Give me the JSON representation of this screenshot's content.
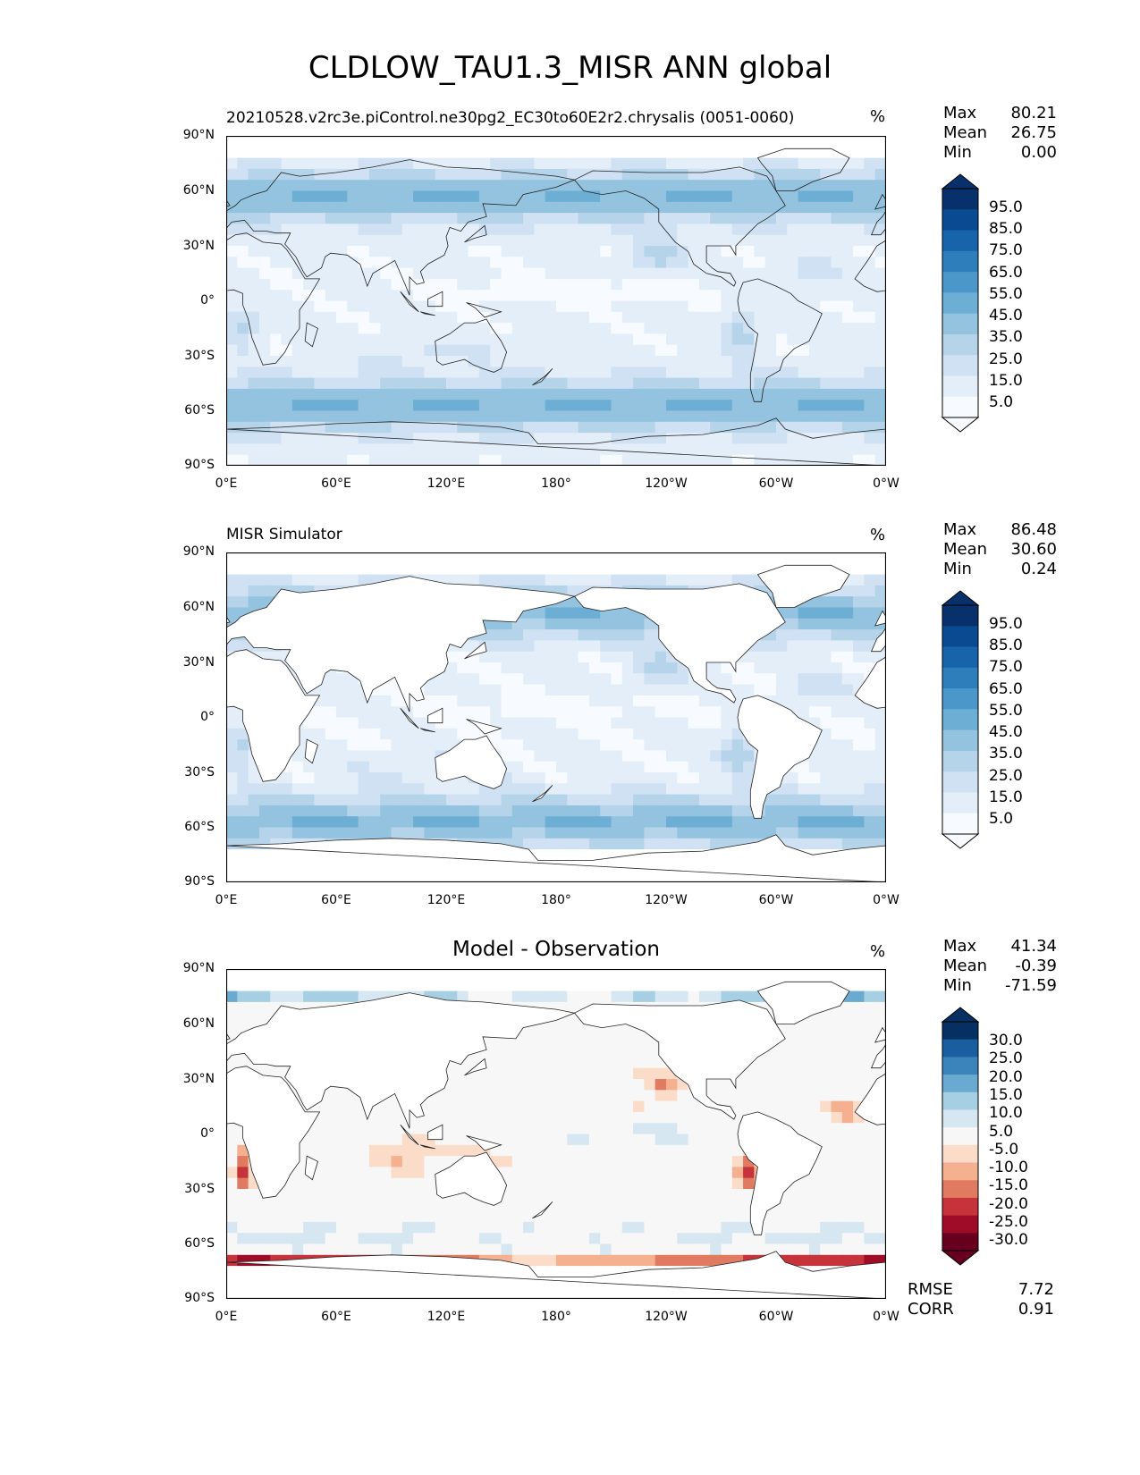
{
  "title": "CLDLOW_TAU1.3_MISR ANN global",
  "axes": {
    "yticks": [
      "90°N",
      "60°N",
      "30°N",
      "0°",
      "30°S",
      "60°S",
      "90°S"
    ],
    "xticks": [
      "0°E",
      "60°E",
      "120°E",
      "180°",
      "120°W",
      "60°W",
      "0°W"
    ]
  },
  "panels": [
    {
      "subtitle": "20210528.v2rc3e.piControl.ne30pg2_EC30to60E2r2.chrysalis (0051-0060)",
      "units": "%",
      "stats": {
        "max_label": "Max",
        "max": "80.21",
        "mean_label": "Mean",
        "mean": "26.75",
        "min_label": "Min",
        "min": "0.00"
      },
      "colorbar_labels": [
        "95.0",
        "85.0",
        "75.0",
        "65.0",
        "55.0",
        "45.0",
        "35.0",
        "25.0",
        "15.0",
        "5.0"
      ]
    },
    {
      "subtitle": "MISR Simulator",
      "units": "%",
      "stats": {
        "max_label": "Max",
        "max": "86.48",
        "mean_label": "Mean",
        "mean": "30.60",
        "min_label": "Min",
        "min": "0.24"
      },
      "colorbar_labels": [
        "95.0",
        "85.0",
        "75.0",
        "65.0",
        "55.0",
        "45.0",
        "35.0",
        "25.0",
        "15.0",
        "5.0"
      ]
    },
    {
      "subtitle": "Model - Observation",
      "units": "%",
      "stats": {
        "max_label": "Max",
        "max": "41.34",
        "mean_label": "Mean",
        "mean": "-0.39",
        "min_label": "Min",
        "min": "-71.59"
      },
      "colorbar_labels": [
        "30.0",
        "25.0",
        "20.0",
        "15.0",
        "10.0",
        "5.0",
        "-5.0",
        "-10.0",
        "-15.0",
        "-20.0",
        "-25.0",
        "-30.0"
      ],
      "rmse_label": "RMSE",
      "rmse": "7.72",
      "corr_label": "CORR",
      "corr": "0.91"
    }
  ],
  "chart_data": [
    {
      "type": "heatmap",
      "variable": "CLDLOW_TAU1.3_MISR",
      "units": "%",
      "xlim": [
        0,
        360
      ],
      "ylim": [
        -90,
        90
      ],
      "levels": [
        0,
        5,
        10,
        15,
        20,
        25,
        30,
        35,
        40,
        45,
        50,
        55,
        60,
        65,
        70,
        75,
        80,
        85,
        90,
        95,
        100
      ],
      "colormap": [
        "#f7fbff",
        "#deebf7",
        "#c6dbef",
        "#9ecae1",
        "#6baed6",
        "#4292c6",
        "#2171b5",
        "#08519c",
        "#08306b"
      ],
      "max": 80.21,
      "mean": 26.75,
      "min": 0.0
    },
    {
      "type": "heatmap",
      "variable": "CLDLOW_TAU1.3_MISR",
      "units": "%",
      "xlim": [
        0,
        360
      ],
      "ylim": [
        -90,
        90
      ],
      "levels": [
        0,
        5,
        10,
        15,
        20,
        25,
        30,
        35,
        40,
        45,
        50,
        55,
        60,
        65,
        70,
        75,
        80,
        85,
        90,
        95,
        100
      ],
      "colormap": [
        "#f7fbff",
        "#deebf7",
        "#c6dbef",
        "#9ecae1",
        "#6baed6",
        "#4292c6",
        "#2171b5",
        "#08519c",
        "#08306b"
      ],
      "max": 86.48,
      "mean": 30.6,
      "min": 0.24
    },
    {
      "type": "heatmap",
      "units": "%",
      "xlim": [
        0,
        360
      ],
      "ylim": [
        -90,
        90
      ],
      "levels": [
        -35,
        -30,
        -25,
        -20,
        -15,
        -10,
        -5,
        5,
        10,
        15,
        20,
        25,
        30,
        35
      ],
      "colormap": [
        "#67001f",
        "#b2182b",
        "#d6604d",
        "#f4a582",
        "#fddbc7",
        "#f7f7f7",
        "#d1e5f0",
        "#92c5de",
        "#4393c3",
        "#2166ac",
        "#053061"
      ],
      "max": 41.34,
      "mean": -0.39,
      "min": -71.59,
      "rmse": 7.72,
      "corr": 0.91
    }
  ],
  "colors": {
    "blues": [
      "#f7fbff",
      "#e3eef9",
      "#cfe1f2",
      "#b5d4e9",
      "#93c3df",
      "#6daed5",
      "#4b97c9",
      "#2f7ebc",
      "#1864aa",
      "#0a4a90",
      "#08306b"
    ],
    "rdbu": [
      "#67001f",
      "#9f0c27",
      "#c6333b",
      "#e07b62",
      "#f4b08f",
      "#fbdcc8",
      "#f7f7f7",
      "#d6e7f1",
      "#a7cfe4",
      "#6aa9d0",
      "#3a84bb",
      "#1b5ea0",
      "#053061"
    ],
    "land": "#ffffff",
    "coast": "#222222"
  },
  "icons": {
    "colorbar_arrow": "triangle-extend-arrow"
  }
}
